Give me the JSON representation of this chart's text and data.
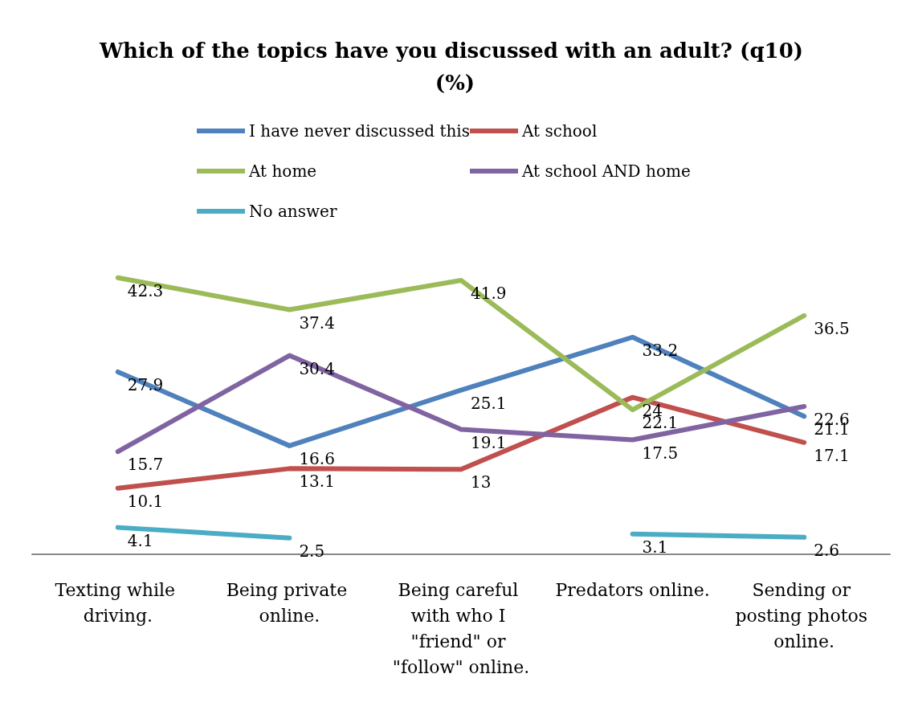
{
  "chart_data": {
    "type": "line",
    "title": "Which of the topics have you discussed with an adult? (q10) (%)",
    "categories": [
      "Texting while driving.",
      "Being private online.",
      "Being careful with who I \"friend\" or \"follow\" online.",
      "Predators online.",
      "Sending or posting photos online."
    ],
    "series": [
      {
        "name": "I have never discussed this",
        "color": "#4f81bd",
        "values": [
          27.9,
          16.6,
          25.1,
          33.2,
          21.1
        ]
      },
      {
        "name": "At school",
        "color": "#c0504d",
        "values": [
          10.1,
          13.1,
          13,
          24,
          17.1
        ]
      },
      {
        "name": "At home",
        "color": "#9bbb59",
        "values": [
          42.3,
          37.4,
          41.9,
          22.1,
          36.5
        ]
      },
      {
        "name": "At school AND home",
        "color": "#8064a2",
        "values": [
          15.7,
          30.4,
          19.1,
          17.5,
          22.6
        ]
      },
      {
        "name": "No answer",
        "color": "#4bacc6",
        "values": [
          4.1,
          2.5,
          null,
          3.1,
          2.6
        ]
      }
    ],
    "data_labels": true,
    "legend": "top",
    "grid": false,
    "marker": "none",
    "line_style": "solid"
  }
}
